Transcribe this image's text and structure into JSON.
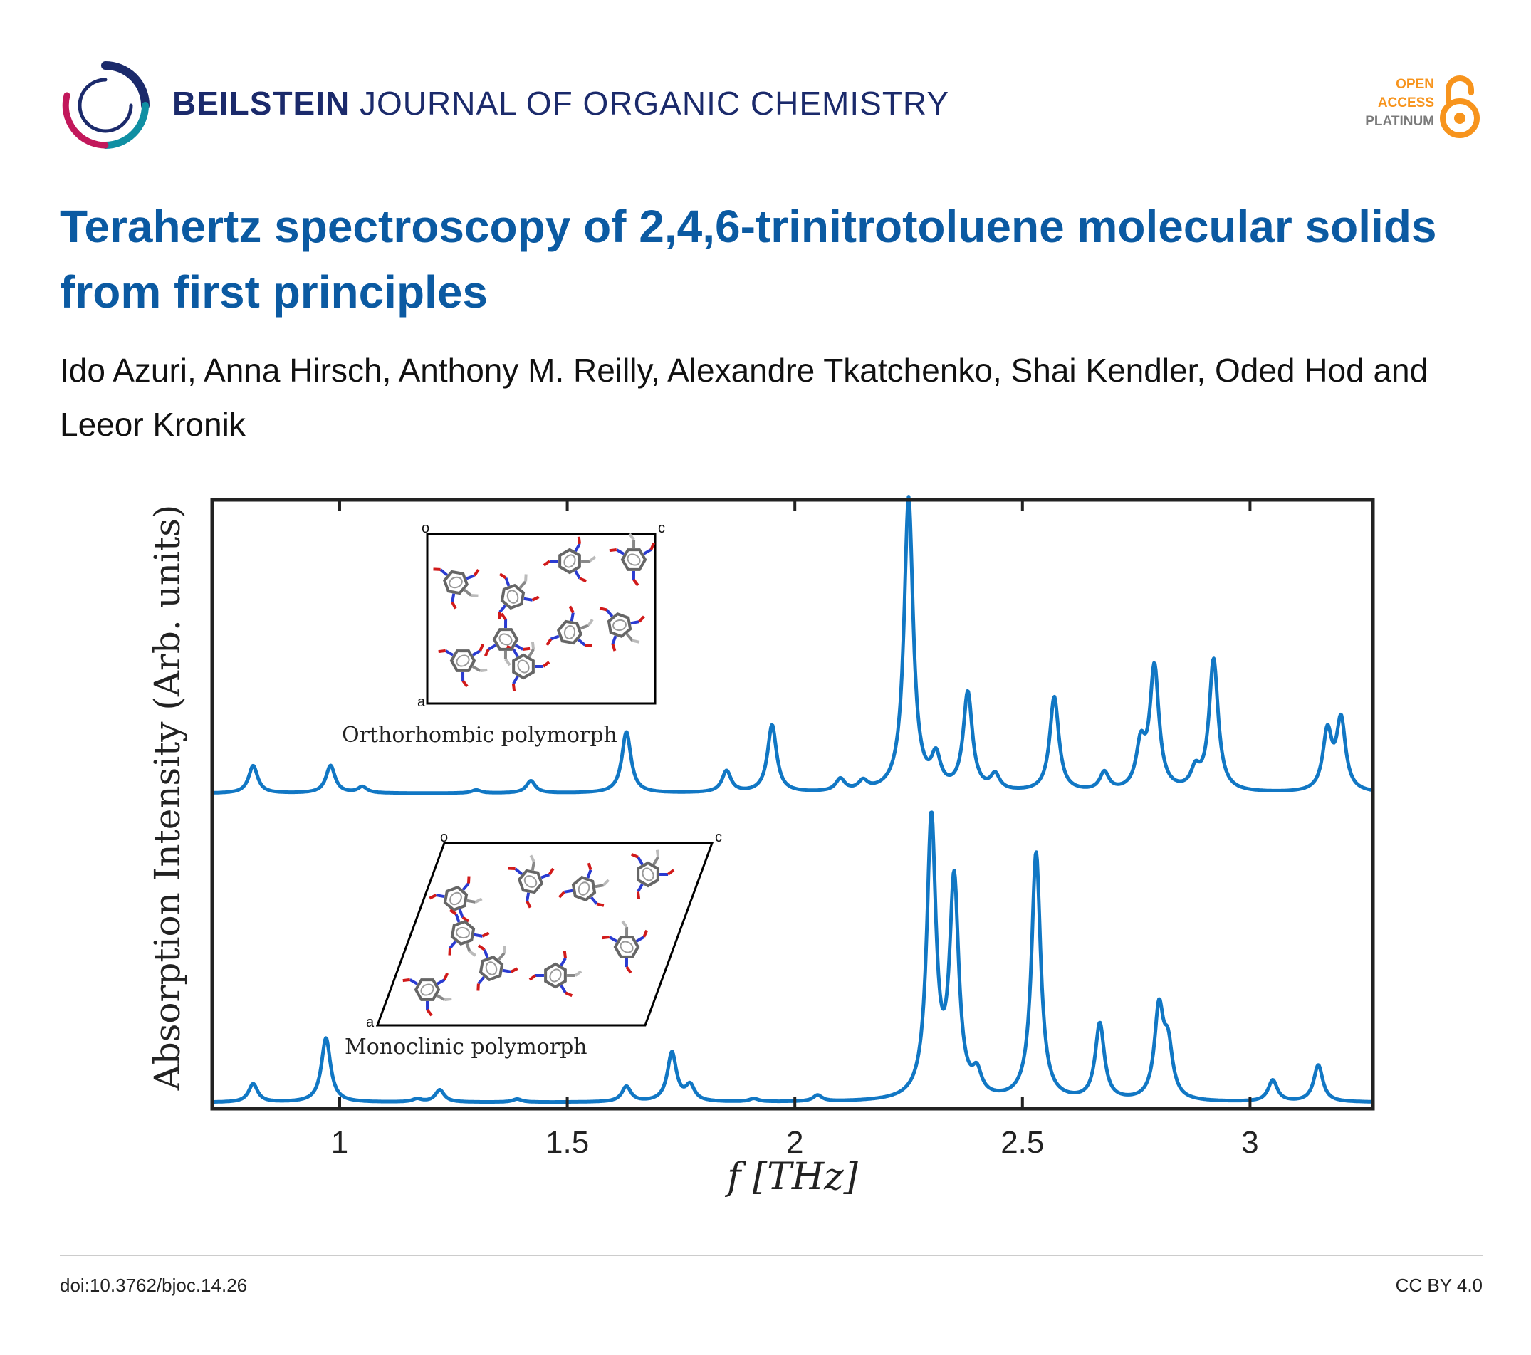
{
  "header": {
    "journal_bold": "BEILSTEIN",
    "journal_rest": "JOURNAL OF ORGANIC CHEMISTRY",
    "oa_line1": "OPEN",
    "oa_line2": "ACCESS",
    "oa_line3": "PLATINUM",
    "logo_icon": "beilstein-ring-logo",
    "lock_icon": "open-access-lock-icon",
    "colors": {
      "journal": "#1b2a6b",
      "title": "#0b5aa2",
      "oa": "#f7941d",
      "plot": "#1177c4"
    }
  },
  "article": {
    "title": "Terahertz spectroscopy of 2,4,6-trinitrotoluene molecular solids from first principles",
    "authors": "Ido Azuri, Anna Hirsch, Anthony M. Reilly, Alexandre Tkatchenko, Shai Kendler, Oded Hod and Leeor Kronik"
  },
  "figure": {
    "inset_top_label": "Orthorhombic polymorph",
    "inset_bottom_label": "Monoclinic polymorph",
    "inset_top_axes": {
      "origin": "o",
      "right": "c",
      "bottom": "a"
    },
    "inset_bottom_axes": {
      "origin": "o",
      "right": "c",
      "bottom": "a"
    }
  },
  "chart_data": {
    "type": "line",
    "xlabel": "f [THz]",
    "ylabel": "Absorption Intensity (Arb. units)",
    "xlim": [
      0.72,
      3.27
    ],
    "xticks": [
      1,
      1.5,
      2,
      2.5,
      3
    ],
    "xtick_labels": [
      "1",
      "1.5",
      "2",
      "2.5",
      "3"
    ],
    "grid": false,
    "series": [
      {
        "name": "Orthorhombic polymorph",
        "peaks": [
          [
            0.81,
            0.09
          ],
          [
            0.98,
            0.09
          ],
          [
            1.05,
            0.02
          ],
          [
            1.3,
            0.01
          ],
          [
            1.42,
            0.04
          ],
          [
            1.63,
            0.2
          ],
          [
            1.85,
            0.07
          ],
          [
            1.95,
            0.22
          ],
          [
            2.1,
            0.04
          ],
          [
            2.15,
            0.03
          ],
          [
            2.25,
            0.96
          ],
          [
            2.31,
            0.1
          ],
          [
            2.38,
            0.32
          ],
          [
            2.44,
            0.05
          ],
          [
            2.57,
            0.31
          ],
          [
            2.68,
            0.06
          ],
          [
            2.76,
            0.14
          ],
          [
            2.79,
            0.4
          ],
          [
            2.88,
            0.06
          ],
          [
            2.92,
            0.43
          ],
          [
            3.17,
            0.19
          ],
          [
            3.2,
            0.23
          ]
        ]
      },
      {
        "name": "Monoclinic polymorph",
        "peaks": [
          [
            0.81,
            0.06
          ],
          [
            0.97,
            0.21
          ],
          [
            1.17,
            0.01
          ],
          [
            1.22,
            0.04
          ],
          [
            1.39,
            0.01
          ],
          [
            1.63,
            0.05
          ],
          [
            1.73,
            0.16
          ],
          [
            1.77,
            0.05
          ],
          [
            1.91,
            0.01
          ],
          [
            2.05,
            0.02
          ],
          [
            2.3,
            0.91
          ],
          [
            2.35,
            0.7
          ],
          [
            2.4,
            0.07
          ],
          [
            2.53,
            0.81
          ],
          [
            2.67,
            0.25
          ],
          [
            2.8,
            0.29
          ],
          [
            2.82,
            0.16
          ],
          [
            3.05,
            0.07
          ],
          [
            3.15,
            0.12
          ]
        ]
      }
    ]
  },
  "footer": {
    "doi": "doi:10.3762/bjoc.14.26",
    "license": "CC BY 4.0"
  }
}
